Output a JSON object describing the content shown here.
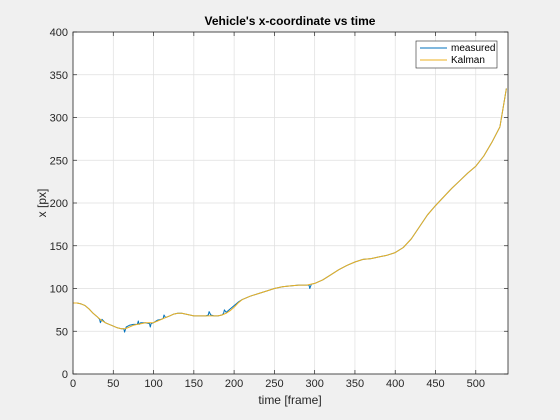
{
  "chart_data": {
    "type": "line",
    "title": "Vehicle's x-coordinate vs time",
    "xlabel": "time [frame]",
    "ylabel": "x [px]",
    "xlim": [
      0,
      540
    ],
    "ylim": [
      0,
      400
    ],
    "xticks": [
      0,
      50,
      100,
      150,
      200,
      250,
      300,
      350,
      400,
      450,
      500
    ],
    "yticks": [
      0,
      50,
      100,
      150,
      200,
      250,
      300,
      350,
      400
    ],
    "grid": true,
    "legend_position": "top-right",
    "series": [
      {
        "name": "measured",
        "color": "#0072BD",
        "x": [
          0,
          5,
          10,
          15,
          20,
          25,
          30,
          33,
          34,
          36,
          40,
          45,
          50,
          55,
          60,
          63,
          64,
          66,
          70,
          75,
          80,
          81,
          82,
          84,
          90,
          95,
          96,
          97,
          100,
          105,
          110,
          112,
          113,
          115,
          120,
          125,
          130,
          135,
          140,
          145,
          150,
          155,
          160,
          165,
          168,
          169,
          171,
          175,
          180,
          185,
          187,
          188,
          190,
          195,
          200,
          205,
          210,
          220,
          230,
          240,
          250,
          260,
          270,
          280,
          290,
          293,
          294,
          296,
          300,
          310,
          320,
          330,
          340,
          350,
          360,
          370,
          380,
          390,
          400,
          410,
          420,
          430,
          440,
          450,
          460,
          470,
          480,
          490,
          500,
          510,
          520,
          530,
          538
        ],
        "values": [
          83,
          83,
          82,
          80,
          76,
          71,
          67,
          64,
          60,
          64,
          60,
          58,
          56,
          54,
          53,
          53,
          49,
          55,
          57,
          58,
          58,
          62,
          58,
          60,
          60,
          59,
          55,
          59,
          60,
          63,
          64,
          65,
          69,
          66,
          68,
          70,
          71,
          71,
          70,
          69,
          68,
          68,
          68,
          68,
          69,
          73,
          69,
          68,
          68,
          69,
          71,
          75,
          72,
          76,
          80,
          84,
          87,
          91,
          94,
          97,
          100,
          102,
          103,
          104,
          104,
          104,
          100,
          105,
          106,
          110,
          116,
          122,
          127,
          131,
          134,
          135,
          137,
          139,
          142,
          148,
          158,
          172,
          186,
          197,
          207,
          217,
          226,
          235,
          243,
          255,
          271,
          289,
          334
        ]
      },
      {
        "name": "Kalman",
        "color": "#EDB120",
        "x": [
          0,
          5,
          10,
          15,
          20,
          25,
          30,
          35,
          40,
          45,
          50,
          55,
          60,
          65,
          70,
          75,
          80,
          85,
          90,
          95,
          100,
          105,
          110,
          115,
          120,
          125,
          130,
          135,
          140,
          145,
          150,
          155,
          160,
          165,
          170,
          175,
          180,
          185,
          190,
          195,
          200,
          205,
          210,
          220,
          230,
          240,
          250,
          260,
          270,
          280,
          290,
          300,
          310,
          320,
          330,
          340,
          350,
          360,
          370,
          380,
          390,
          400,
          410,
          420,
          430,
          440,
          450,
          460,
          470,
          480,
          490,
          500,
          510,
          520,
          530,
          538
        ],
        "values": [
          83,
          83,
          82,
          80,
          76,
          71,
          67,
          63,
          60,
          58,
          56,
          54,
          53,
          53,
          55,
          57,
          58,
          59,
          60,
          60,
          60,
          62,
          64,
          66,
          68,
          70,
          71,
          71,
          70,
          69,
          68,
          68,
          68,
          68,
          68,
          68,
          68,
          69,
          71,
          74,
          78,
          83,
          87,
          91,
          94,
          97,
          100,
          102,
          103,
          104,
          104,
          106,
          110,
          116,
          122,
          127,
          131,
          134,
          135,
          137,
          139,
          142,
          148,
          158,
          172,
          186,
          197,
          207,
          217,
          226,
          235,
          243,
          255,
          271,
          289,
          334
        ]
      }
    ]
  }
}
